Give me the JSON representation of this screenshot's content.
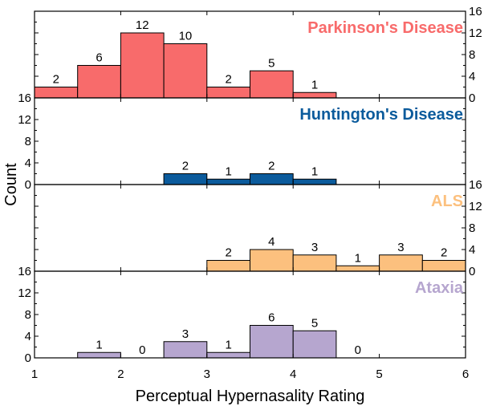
{
  "chart_data": {
    "type": "bar",
    "xlabel": "Perceptual Hypernasality Rating",
    "ylabel": "Count",
    "xlim": [
      1,
      6
    ],
    "xticks": [
      "1",
      "2",
      "3",
      "4",
      "5",
      "6"
    ],
    "bin_width": 0.5,
    "ylim": [
      0,
      16
    ],
    "yticks": [
      "0",
      "4",
      "8",
      "12",
      "16"
    ],
    "grid": false,
    "legend": "none",
    "panels": [
      {
        "name": "Parkinson's Disease",
        "color": "#F86B6B",
        "y_axis_side": "right",
        "bins": [
          {
            "x": 1.0,
            "value": 2,
            "label": "2"
          },
          {
            "x": 1.5,
            "value": 6,
            "label": "6"
          },
          {
            "x": 2.0,
            "value": 12,
            "label": "12"
          },
          {
            "x": 2.5,
            "value": 10,
            "label": "10"
          },
          {
            "x": 3.0,
            "value": 2,
            "label": "2"
          },
          {
            "x": 3.5,
            "value": 5,
            "label": "5"
          },
          {
            "x": 4.0,
            "value": 1,
            "label": "1"
          }
        ]
      },
      {
        "name": "Huntington's Disease",
        "color": "#0B5B9C",
        "y_axis_side": "left",
        "bins": [
          {
            "x": 2.5,
            "value": 2,
            "label": "2"
          },
          {
            "x": 3.0,
            "value": 1,
            "label": "1"
          },
          {
            "x": 3.5,
            "value": 2,
            "label": "2"
          },
          {
            "x": 4.0,
            "value": 1,
            "label": "1"
          }
        ]
      },
      {
        "name": "ALS",
        "color": "#FCC07E",
        "y_axis_side": "right",
        "bins": [
          {
            "x": 3.0,
            "value": 2,
            "label": "2"
          },
          {
            "x": 3.5,
            "value": 4,
            "label": "4"
          },
          {
            "x": 4.0,
            "value": 3,
            "label": "3"
          },
          {
            "x": 4.5,
            "value": 1,
            "label": "1"
          },
          {
            "x": 5.0,
            "value": 3,
            "label": "3"
          },
          {
            "x": 5.5,
            "value": 2,
            "label": "2"
          }
        ]
      },
      {
        "name": "Ataxia",
        "color": "#B6A6CF",
        "y_axis_side": "left",
        "bins": [
          {
            "x": 1.5,
            "value": 1,
            "label": "1"
          },
          {
            "x": 2.0,
            "value": 0,
            "label": "0"
          },
          {
            "x": 2.5,
            "value": 3,
            "label": "3"
          },
          {
            "x": 3.0,
            "value": 1,
            "label": "1"
          },
          {
            "x": 3.5,
            "value": 6,
            "label": "6"
          },
          {
            "x": 4.0,
            "value": 5,
            "label": "5"
          },
          {
            "x": 4.5,
            "value": 0,
            "label": "0"
          }
        ]
      }
    ]
  }
}
